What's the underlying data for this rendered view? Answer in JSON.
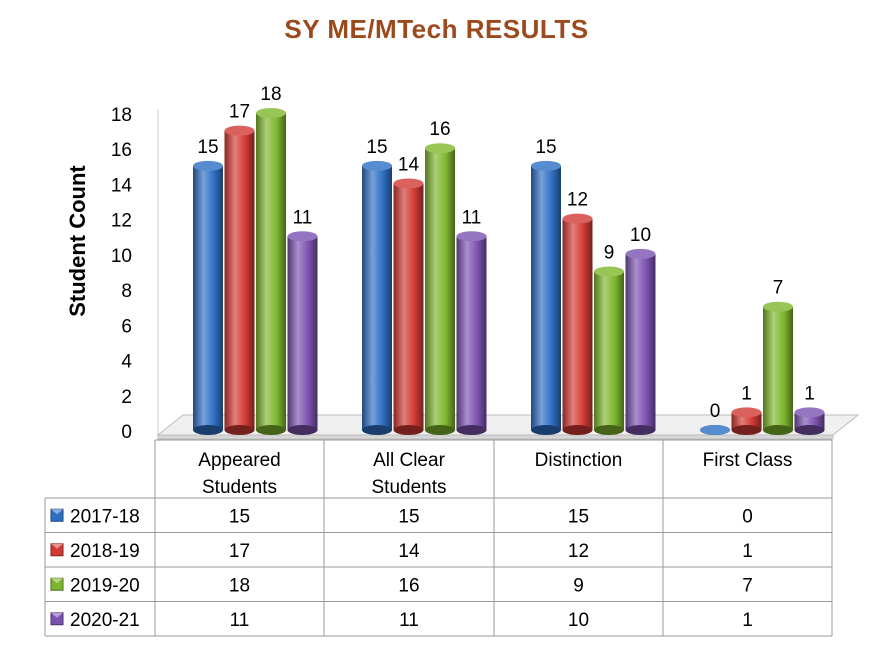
{
  "chart_data": {
    "type": "bar",
    "title": "SY ME/MTech RESULTS",
    "xlabel": "",
    "ylabel": "Student Count",
    "ylim": [
      0,
      18
    ],
    "yticks": [
      0,
      2,
      4,
      6,
      8,
      10,
      12,
      14,
      16,
      18
    ],
    "categories": [
      "Appeared Students",
      "All Clear Students",
      "Distinction",
      "First Class"
    ],
    "series": [
      {
        "name": "2017-18",
        "values": [
          15,
          15,
          15,
          0
        ],
        "color": "#2e6fc4"
      },
      {
        "name": "2018-19",
        "values": [
          17,
          14,
          12,
          1
        ],
        "color": "#d23a33"
      },
      {
        "name": "2019-20",
        "values": [
          18,
          16,
          9,
          7
        ],
        "color": "#7db62c"
      },
      {
        "name": "2020-21",
        "values": [
          11,
          11,
          10,
          1
        ],
        "color": "#7c52b0"
      }
    ],
    "grid": false,
    "legend": "data-table-below"
  }
}
